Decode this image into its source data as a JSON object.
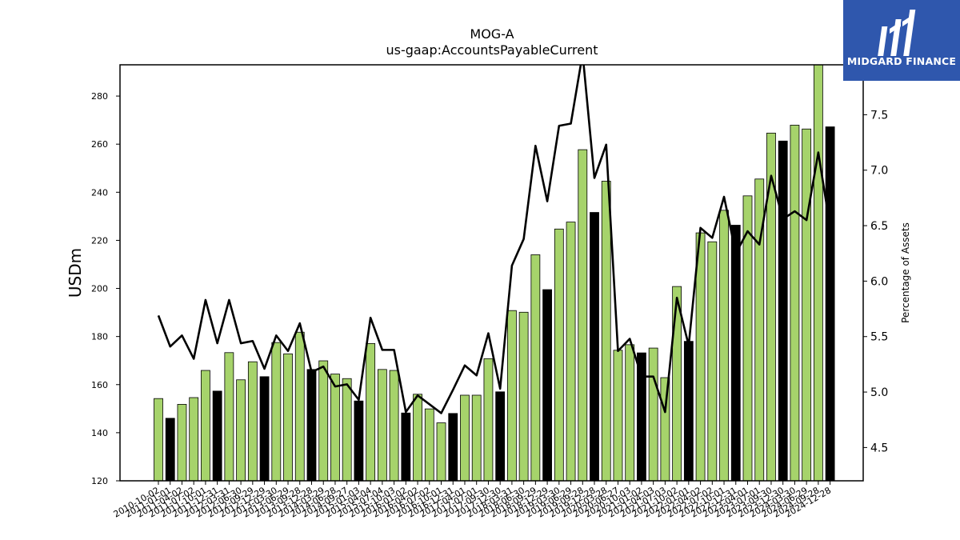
{
  "chart_data": {
    "type": "bar",
    "title": "MOG-A",
    "subtitle": "us-gaap:AccountsPayableCurrent",
    "ylabel": "USDm",
    "y2label": "Percentage of Assets",
    "ylim": [
      120,
      293
    ],
    "y2lim": [
      4.2,
      7.95
    ],
    "yticks": [
      120,
      140,
      160,
      180,
      200,
      220,
      240,
      260,
      280
    ],
    "y2ticks": [
      4.5,
      5.0,
      5.5,
      6.0,
      6.5,
      7.0,
      7.5
    ],
    "colors": {
      "quarter": "#a6d36b",
      "year_end": "#000000",
      "line": "#000000"
    },
    "categories": [
      "2010-10-02",
      "2011-01-01",
      "2011-04-02",
      "2011-07-02",
      "2011-10-01",
      "2011-12-31",
      "2012-03-31",
      "2012-06-30",
      "2012-09-29",
      "2012-12-29",
      "2013-03-30",
      "2013-06-29",
      "2013-09-28",
      "2013-12-28",
      "2014-03-29",
      "2014-06-28",
      "2014-09-27",
      "2015-01-03",
      "2015-04-04",
      "2015-07-04",
      "2015-10-03",
      "2016-01-02",
      "2016-04-02",
      "2016-07-02",
      "2016-10-01",
      "2016-12-31",
      "2017-04-01",
      "2017-07-01",
      "2017-09-30",
      "2017-12-30",
      "2018-03-31",
      "2018-06-30",
      "2018-09-29",
      "2018-12-29",
      "2019-03-30",
      "2019-06-29",
      "2019-09-28",
      "2019-12-28",
      "2020-03-28",
      "2020-06-27",
      "2020-10-03",
      "2021-01-02",
      "2021-04-03",
      "2021-07-03",
      "2021-10-02",
      "2022-01-01",
      "2022-04-02",
      "2022-07-02",
      "2022-10-01",
      "2022-12-31",
      "2023-04-01",
      "2023-07-01",
      "2023-09-30",
      "2023-12-30",
      "2024-03-30",
      "2024-06-29",
      "2024-09-28",
      "2024-12-28"
    ],
    "x_tick_labels": [
      "2010-10-02",
      "2011-01-01",
      "2011-04-02",
      "2011-07-02",
      "2011-10-01",
      "2011-12-31",
      "2012-03-31",
      "2012-06-30",
      "2012-09-29",
      "2012-12-29",
      "2013-03-30",
      "2013-06-29",
      "2013-09-28",
      "2013-12-28",
      "2014-03-29",
      "2014-06-28",
      "2014-09-27",
      "2015-01-03",
      "2015-04-04",
      "2015-07-04",
      "2015-10-03",
      "2016-01-02",
      "2016-04-02",
      "2016-07-02",
      "2016-10-01",
      "2016-12-31",
      "2017-04-01",
      "2017-07-01",
      "2017-09-30",
      "2017-12-30",
      "2018-03-31",
      "2018-06-30",
      "2018-09-29",
      "2018-12-29",
      "2019-03-30",
      "2019-06-29",
      "2019-09-28",
      "2019-12-28",
      "2020-03-28",
      "2020-06-27",
      "2020-10-03",
      "2021-01-02",
      "2021-04-03",
      "2021-07-03",
      "2021-10-02",
      "2022-01-01",
      "2022-04-02",
      "2022-07-02",
      "2022-10-01",
      "2022-12-31",
      "2023-04-01",
      "2023-07-01",
      "2023-09-30",
      "2023-12-30",
      "2024-03-30",
      "2024-06-29",
      "2024-09-28",
      "2024-12-28"
    ],
    "series": [
      {
        "axis": "left",
        "values": [
          154.2,
          146.0,
          151.8,
          154.6,
          165.9,
          157.3,
          173.3,
          162.0,
          169.5,
          163.3,
          177.5,
          172.8,
          181.8,
          166.3,
          169.9,
          164.4,
          162.5,
          153.2,
          177.1,
          166.3,
          165.9,
          148.2,
          156.0,
          149.9,
          144.1,
          148.0,
          155.6,
          155.6,
          170.8,
          157.0,
          190.8,
          190.1,
          214.0,
          199.5,
          224.7,
          227.6,
          257.7,
          231.6,
          244.6,
          174.3,
          176.6,
          173.2,
          175.2,
          162.9,
          200.8,
          178.0,
          223.1,
          219.4,
          232.5,
          226.3,
          238.5,
          245.5,
          264.6,
          261.3,
          267.9,
          266.3,
          293.0,
          267.2
        ],
        "year_end": [
          false,
          true,
          false,
          false,
          false,
          true,
          false,
          false,
          false,
          true,
          false,
          false,
          false,
          true,
          false,
          false,
          false,
          true,
          false,
          false,
          false,
          true,
          false,
          false,
          false,
          true,
          false,
          false,
          false,
          true,
          false,
          false,
          false,
          true,
          false,
          false,
          false,
          true,
          false,
          false,
          false,
          true,
          false,
          false,
          false,
          true,
          false,
          false,
          false,
          true,
          false,
          false,
          false,
          true,
          false,
          false,
          false,
          true
        ]
      },
      {
        "axis": "right",
        "values": [
          5.69,
          5.41,
          5.51,
          5.3,
          5.83,
          5.44,
          5.83,
          5.44,
          5.46,
          5.21,
          5.51,
          5.37,
          5.62,
          5.18,
          5.23,
          5.05,
          5.07,
          4.93,
          5.67,
          5.38,
          5.38,
          4.82,
          4.97,
          4.89,
          4.81,
          5.02,
          5.24,
          5.15,
          5.53,
          5.03,
          6.14,
          6.38,
          7.22,
          6.72,
          7.4,
          7.42,
          8.05,
          6.93,
          7.23,
          5.37,
          5.48,
          5.14,
          5.14,
          4.82,
          5.85,
          5.42,
          6.48,
          6.39,
          6.76,
          6.25,
          6.45,
          6.33,
          6.95,
          6.56,
          6.63,
          6.55,
          7.16,
          6.49
        ]
      }
    ]
  },
  "logo": {
    "name": "MIDGARD FINANCE"
  }
}
